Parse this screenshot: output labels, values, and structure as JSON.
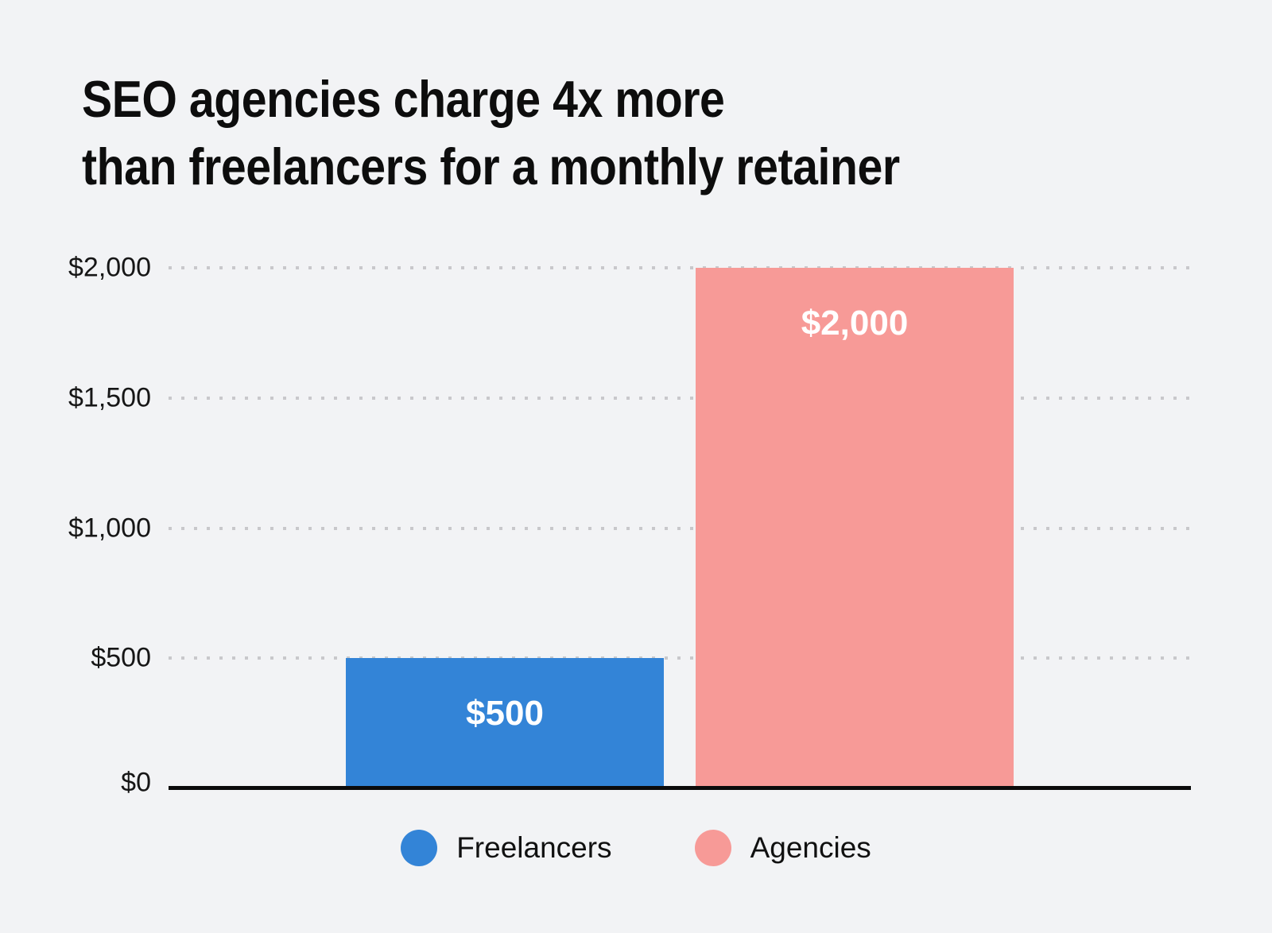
{
  "title": {
    "line1": "SEO agencies charge 4x more",
    "line2": "than freelancers for a monthly retainer"
  },
  "colors": {
    "background": "#f2f3f5",
    "freelancers_blue": "#3384d7",
    "agencies_pink": "#f79a97",
    "axis_line": "#0b0b0b",
    "gridline_dots": "#c8c8cb",
    "bar_label_text": "#ffffff",
    "tick_text": "#161616"
  },
  "chart_data": {
    "type": "bar",
    "title": "SEO agencies charge 4x more than freelancers for a monthly retainer",
    "categories": [
      "Freelancers",
      "Agencies"
    ],
    "values": [
      500,
      2000
    ],
    "value_labels": [
      "$500",
      "$2,000"
    ],
    "series_colors": [
      "#3384d7",
      "#f79a97"
    ],
    "xlabel": "",
    "ylabel": "",
    "ylim": [
      0,
      2000
    ],
    "yticks": [
      0,
      500,
      1000,
      1500,
      2000
    ],
    "ytick_labels": [
      "$0",
      "$500",
      "$1,000",
      "$1,500",
      "$2,000"
    ],
    "grid": "horizontal-dotted",
    "legend_position": "bottom-center"
  },
  "legend": {
    "items": [
      {
        "label": "Freelancers",
        "color": "#3384d7"
      },
      {
        "label": "Agencies",
        "color": "#f79a97"
      }
    ]
  }
}
